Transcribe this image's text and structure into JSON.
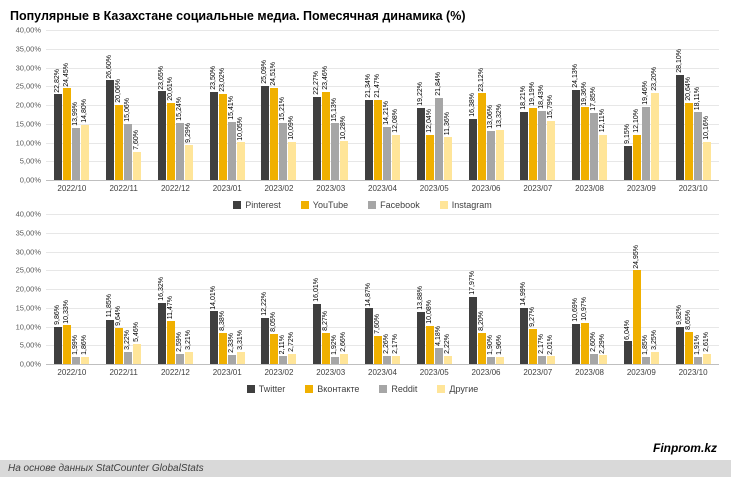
{
  "title": "Популярные в Казахстане социальные медиа. Помесячная динамика (%)",
  "footer": {
    "source": "На основе данных StatCounter GlobalStats",
    "brand": "Finprom.kz"
  },
  "colors": {
    "dark": "#3f3f3f",
    "yellow": "#f0b000",
    "gray": "#a6a6a6",
    "light": "#ffe599"
  },
  "chart_data": [
    {
      "type": "bar",
      "title": "",
      "categories": [
        "2022/10",
        "2022/11",
        "2022/12",
        "2023/01",
        "2023/02",
        "2023/03",
        "2023/04",
        "2023/05",
        "2023/06",
        "2023/07",
        "2023/08",
        "2023/09",
        "2023/10"
      ],
      "series": [
        {
          "name": "Pinterest",
          "color": "#3f3f3f",
          "values": [
            22.82,
            26.6,
            23.65,
            23.5,
            25.09,
            22.27,
            21.34,
            19.22,
            16.38,
            18.21,
            24.13,
            9.15,
            28.1
          ]
        },
        {
          "name": "YouTube",
          "color": "#f0b000",
          "values": [
            24.45,
            20.06,
            20.61,
            23.02,
            24.51,
            23.46,
            21.47,
            12.04,
            23.12,
            19.19,
            19.36,
            12.1,
            20.64
          ]
        },
        {
          "name": "Facebook",
          "color": "#a6a6a6",
          "values": [
            13.99,
            15.06,
            15.24,
            15.41,
            15.21,
            15.13,
            14.21,
            21.84,
            13.06,
            18.43,
            17.85,
            19.46,
            18.11
          ]
        },
        {
          "name": "Instagram",
          "color": "#ffe599",
          "values": [
            14.8,
            7.6,
            9.29,
            10.05,
            10.09,
            10.28,
            12.08,
            11.36,
            13.32,
            15.79,
            12.11,
            23.2,
            10.16
          ]
        }
      ],
      "ylim": [
        0,
        40
      ],
      "ytick_step": 5,
      "grid": true,
      "legend_position": "bottom",
      "value_labels": "rotated-90"
    },
    {
      "type": "bar",
      "title": "",
      "categories": [
        "2022/10",
        "2022/11",
        "2022/12",
        "2023/01",
        "2023/02",
        "2023/03",
        "2023/04",
        "2023/05",
        "2023/06",
        "2023/07",
        "2023/08",
        "2023/09",
        "2023/10"
      ],
      "series": [
        {
          "name": "Twitter",
          "color": "#3f3f3f",
          "values": [
            9.86,
            11.85,
            16.32,
            14.01,
            12.22,
            16.01,
            14.87,
            13.88,
            17.97,
            14.99,
            10.69,
            6.04,
            9.82
          ]
        },
        {
          "name": "Вконтакте",
          "color": "#f0b000",
          "values": [
            10.33,
            9.64,
            11.47,
            8.38,
            8.05,
            8.27,
            7.6,
            10.08,
            8.2,
            9.27,
            10.97,
            24.95,
            8.65
          ]
        },
        {
          "name": "Reddit",
          "color": "#a6a6a6",
          "values": [
            1.99,
            3.22,
            2.59,
            2.33,
            2.11,
            1.92,
            2.26,
            4.18,
            1.9,
            2.17,
            2.6,
            1.85,
            1.91
          ]
        },
        {
          "name": "Другие",
          "color": "#ffe599",
          "values": [
            1.86,
            5.46,
            3.21,
            3.31,
            2.72,
            2.66,
            2.17,
            2.22,
            1.96,
            2.01,
            2.29,
            3.25,
            2.61
          ]
        }
      ],
      "ylim": [
        0,
        40
      ],
      "ytick_step": 5,
      "grid": true,
      "legend_position": "bottom",
      "value_labels": "rotated-90"
    }
  ]
}
